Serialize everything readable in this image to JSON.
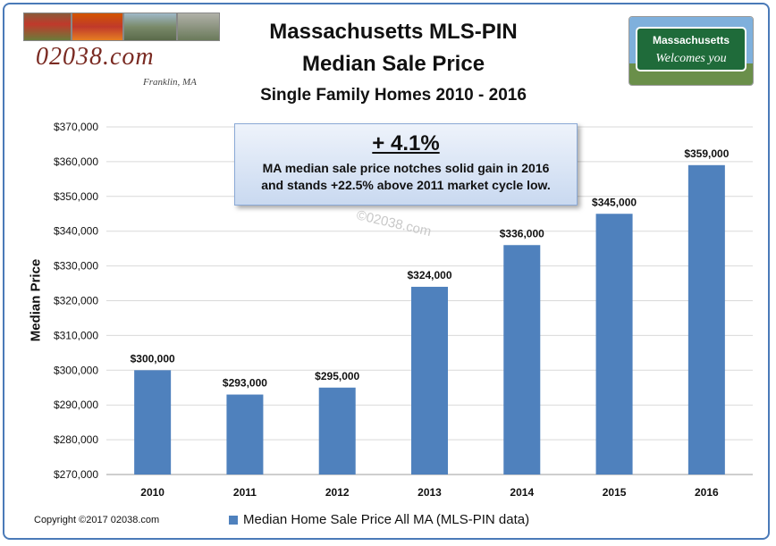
{
  "header": {
    "title_line1": "Massachusetts  MLS-PIN",
    "title_line2": "Median Sale Price",
    "subtitle": "Single Family Homes 2010 - 2016"
  },
  "logo_left": {
    "text": "02038.com",
    "sub": "Franklin, MA"
  },
  "logo_right": {
    "line1": "Massachusetts",
    "line2": "Welcomes you"
  },
  "callout": {
    "headline": "+ 4.1%",
    "line1": "MA median sale price notches solid gain in 2016",
    "line2": "and stands +22.5% above 2011 market cycle low."
  },
  "watermark": "©02038.com",
  "footer": {
    "copyright": "Copyright ©2017 02038.com"
  },
  "colors": {
    "bar": "#4f81bd",
    "frame": "#4a7ab8",
    "grid": "#d9d9d9"
  },
  "chart_data": {
    "type": "bar",
    "title": "Median Sale Price",
    "ylabel": "Median Price",
    "xlabel": "",
    "categories": [
      "2010",
      "2011",
      "2012",
      "2013",
      "2014",
      "2015",
      "2016"
    ],
    "series": [
      {
        "name": "Median Home Sale Price All MA (MLS-PIN data)",
        "values": [
          300000,
          293000,
          295000,
          324000,
          336000,
          345000,
          359000
        ],
        "labels": [
          "$300,000",
          "$293,000",
          "$295,000",
          "$324,000",
          "$336,000",
          "$345,000",
          "$359,000"
        ]
      }
    ],
    "ylim": [
      270000,
      370000
    ],
    "ytick_step": 10000,
    "ytick_labels": [
      "$270,000",
      "$280,000",
      "$290,000",
      "$300,000",
      "$310,000",
      "$320,000",
      "$330,000",
      "$340,000",
      "$350,000",
      "$360,000",
      "$370,000"
    ],
    "grid": true,
    "legend_position": "bottom"
  }
}
